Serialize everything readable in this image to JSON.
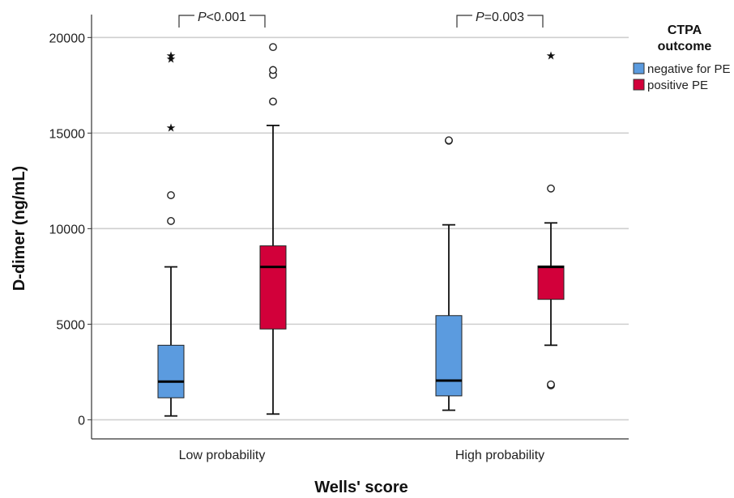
{
  "chart_data": {
    "type": "boxplot",
    "xlabel": "Wells' score",
    "ylabel": "D-dimer (ng/mL)",
    "ylim": [
      -1000,
      21200
    ],
    "yticks": [
      0,
      5000,
      10000,
      15000,
      20000
    ],
    "grid": "horizontal",
    "legend": {
      "title_line1": "CTPA",
      "title_line2": "outcome",
      "placement": "right",
      "entries": [
        {
          "name": "negative for PE",
          "color": "#5b9bdf"
        },
        {
          "name": "positive PE",
          "color": "#d2003a"
        }
      ]
    },
    "categories": [
      "Low probability",
      "High probability"
    ],
    "comparisons": [
      {
        "category": "Low probability",
        "p_label": "P",
        "p_value": "<0.001"
      },
      {
        "category": "High probability",
        "p_label": "P",
        "p_value": "=0.003"
      }
    ],
    "series": [
      {
        "name": "negative for PE",
        "color": "#5b9bdf",
        "boxes": [
          {
            "category": "Low probability",
            "whisker_low": 200,
            "q1": 1150,
            "median": 2000,
            "q3": 3900,
            "whisker_high": 8000,
            "outliers": [
              10400,
              11750
            ],
            "extremes": [
              15300,
              18900,
              19050
            ]
          },
          {
            "category": "High probability",
            "whisker_low": 500,
            "q1": 1250,
            "median": 2050,
            "q3": 5450,
            "whisker_high": 10200,
            "outliers": [
              14600,
              14620
            ],
            "extremes": []
          }
        ]
      },
      {
        "name": "positive PE",
        "color": "#d2003a",
        "boxes": [
          {
            "category": "Low probability",
            "whisker_low": 300,
            "q1": 4750,
            "median": 8000,
            "q3": 9100,
            "whisker_high": 15400,
            "outliers": [
              16650,
              18050,
              18300,
              19500
            ],
            "extremes": []
          },
          {
            "category": "High probability",
            "whisker_low": 3900,
            "q1": 6300,
            "median": 8000,
            "q3": 8050,
            "whisker_high": 10300,
            "outliers": [
              1800,
              1850,
              12100
            ],
            "extremes": [
              19050
            ]
          }
        ]
      }
    ]
  }
}
